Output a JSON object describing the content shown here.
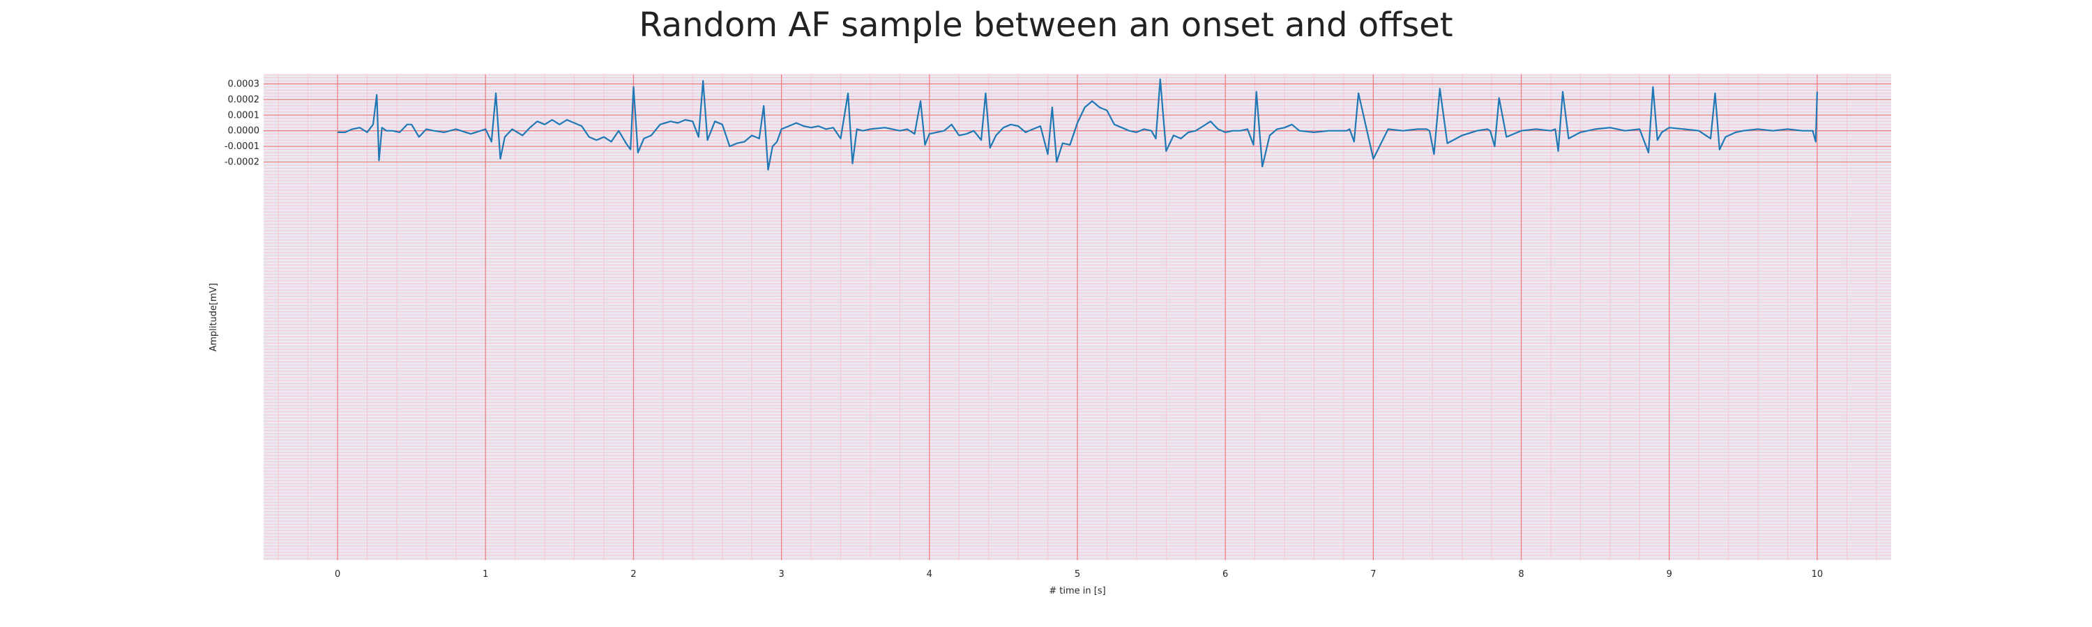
{
  "chart_data": {
    "type": "line",
    "title": "Random AF sample between an onset and offset",
    "xlabel": "# time in [s]",
    "ylabel": "Amplitude[mV]",
    "xlim": [
      -0.5,
      10.5
    ],
    "ylim": [
      -0.00275,
      0.00036
    ],
    "x_ticks": [
      0,
      1,
      2,
      3,
      4,
      5,
      6,
      7,
      8,
      9,
      10
    ],
    "x_tick_labels": [
      "0",
      "1",
      "2",
      "3",
      "4",
      "5",
      "6",
      "7",
      "8",
      "9",
      "10"
    ],
    "y_ticks": [
      0.0003,
      0.0002,
      0.0001,
      0.0,
      -0.0001,
      -0.0002
    ],
    "y_tick_labels": [
      "0.0003",
      "0.0002",
      "0.0001",
      "0.0000",
      "-0.0001",
      "-0.0002"
    ],
    "grid": true,
    "minor_grid": true,
    "colors": {
      "line": "#1f77b4",
      "plot_background": "#eae9f3",
      "major_grid": "#f08080",
      "minor_grid": "#f7c6cf"
    },
    "series": [
      {
        "x": [
          0.0,
          0.05,
          0.1,
          0.15,
          0.2,
          0.24,
          0.265,
          0.28,
          0.3,
          0.33,
          0.37,
          0.42,
          0.47,
          0.5,
          0.55,
          0.6,
          0.65,
          0.72,
          0.8,
          0.9,
          1.0,
          1.04,
          1.07,
          1.1,
          1.13,
          1.18,
          1.25,
          1.3,
          1.35,
          1.4,
          1.45,
          1.5,
          1.55,
          1.6,
          1.65,
          1.7,
          1.75,
          1.8,
          1.85,
          1.9,
          1.95,
          1.98,
          2.0,
          2.03,
          2.07,
          2.12,
          2.18,
          2.25,
          2.3,
          2.35,
          2.4,
          2.44,
          2.47,
          2.5,
          2.55,
          2.6,
          2.65,
          2.7,
          2.75,
          2.8,
          2.85,
          2.88,
          2.91,
          2.94,
          2.97,
          3.0,
          3.05,
          3.1,
          3.15,
          3.2,
          3.25,
          3.3,
          3.35,
          3.4,
          3.45,
          3.48,
          3.51,
          3.55,
          3.6,
          3.7,
          3.8,
          3.85,
          3.9,
          3.94,
          3.97,
          4.0,
          4.05,
          4.1,
          4.15,
          4.2,
          4.25,
          4.3,
          4.35,
          4.38,
          4.41,
          4.45,
          4.5,
          4.55,
          4.6,
          4.65,
          4.7,
          4.75,
          4.8,
          4.83,
          4.86,
          4.9,
          4.95,
          5.0,
          5.05,
          5.1,
          5.15,
          5.2,
          5.25,
          5.3,
          5.35,
          5.4,
          5.45,
          5.5,
          5.53,
          5.56,
          5.6,
          5.65,
          5.7,
          5.75,
          5.8,
          5.85,
          5.9,
          5.95,
          6.0,
          6.05,
          6.1,
          6.15,
          6.19,
          6.21,
          6.25,
          6.3,
          6.35,
          6.4,
          6.45,
          6.5,
          6.6,
          6.7,
          6.8,
          6.82,
          6.84,
          6.87,
          6.9,
          7.0,
          7.1,
          7.2,
          7.3,
          7.36,
          7.38,
          7.41,
          7.45,
          7.5,
          7.6,
          7.7,
          7.77,
          7.79,
          7.82,
          7.85,
          7.9,
          8.0,
          8.1,
          8.2,
          8.23,
          8.25,
          8.28,
          8.32,
          8.4,
          8.5,
          8.6,
          8.7,
          8.8,
          8.86,
          8.89,
          8.92,
          8.95,
          9.0,
          9.1,
          9.2,
          9.28,
          9.31,
          9.34,
          9.38,
          9.45,
          9.5,
          9.6,
          9.7,
          9.8,
          9.9,
          9.97,
          9.99,
          10.0
        ],
        "y": [
          -1e-05,
          -1e-05,
          1e-05,
          2e-05,
          -1e-05,
          4e-05,
          0.00023,
          -0.00019,
          2e-05,
          0.0,
          0.0,
          -1e-05,
          4e-05,
          4e-05,
          -4e-05,
          1e-05,
          0.0,
          -1e-05,
          1e-05,
          -2e-05,
          1e-05,
          -7e-05,
          0.00024,
          -0.00018,
          -4e-05,
          1e-05,
          -3e-05,
          2e-05,
          6e-05,
          4e-05,
          7e-05,
          4e-05,
          7e-05,
          5e-05,
          3e-05,
          -4e-05,
          -6e-05,
          -4e-05,
          -7e-05,
          0.0,
          -8e-05,
          -0.00012,
          0.00028,
          -0.00014,
          -5e-05,
          -3e-05,
          4e-05,
          6e-05,
          5e-05,
          7e-05,
          6e-05,
          -4e-05,
          0.00032,
          -6e-05,
          6e-05,
          4e-05,
          -0.0001,
          -8e-05,
          -7e-05,
          -3e-05,
          -5e-05,
          0.00016,
          -0.00025,
          -0.0001,
          -7e-05,
          1e-05,
          3e-05,
          5e-05,
          3e-05,
          2e-05,
          3e-05,
          1e-05,
          2e-05,
          -5e-05,
          0.00024,
          -0.00021,
          1e-05,
          0.0,
          1e-05,
          2e-05,
          0.0,
          1e-05,
          -2e-05,
          0.00019,
          -9e-05,
          -2e-05,
          -1e-05,
          0.0,
          4e-05,
          -3e-05,
          -2e-05,
          0.0,
          -6e-05,
          0.00024,
          -0.00011,
          -3e-05,
          2e-05,
          4e-05,
          3e-05,
          -1e-05,
          1e-05,
          3e-05,
          -0.00015,
          0.00015,
          -0.0002,
          -8e-05,
          -9e-05,
          5e-05,
          0.00015,
          0.00019,
          0.00015,
          0.00013,
          4e-05,
          2e-05,
          0.0,
          -1e-05,
          1e-05,
          0.0,
          -5e-05,
          0.00033,
          -0.00013,
          -3e-05,
          -5e-05,
          -1e-05,
          0.0,
          3e-05,
          6e-05,
          1e-05,
          -1e-05,
          0.0,
          0.0,
          1e-05,
          -9e-05,
          0.00025,
          -0.00023,
          -3e-05,
          1e-05,
          2e-05,
          4e-05,
          0.0,
          -1e-05,
          0.0,
          0.0,
          0.0,
          1e-05,
          -7e-05,
          0.00024,
          -0.00018,
          1e-05,
          0.0,
          1e-05,
          1e-05,
          0.0,
          -0.00015,
          0.00027,
          -8e-05,
          -3e-05,
          0.0,
          1e-05,
          0.0,
          -0.0001,
          0.00021,
          -4e-05,
          0.0,
          1e-05,
          0.0,
          1e-05,
          -0.00013,
          0.00025,
          -5e-05,
          -1e-05,
          1e-05,
          2e-05,
          0.0,
          1e-05,
          -0.00014,
          0.00028,
          -6e-05,
          -1e-05,
          2e-05,
          1e-05,
          0.0,
          -5e-05,
          0.00024,
          -0.00012,
          -4e-05,
          -1e-05,
          0.0,
          1e-05,
          0.0,
          1e-05,
          0.0,
          0.0,
          -7e-05,
          0.00025
        ]
      }
    ]
  }
}
